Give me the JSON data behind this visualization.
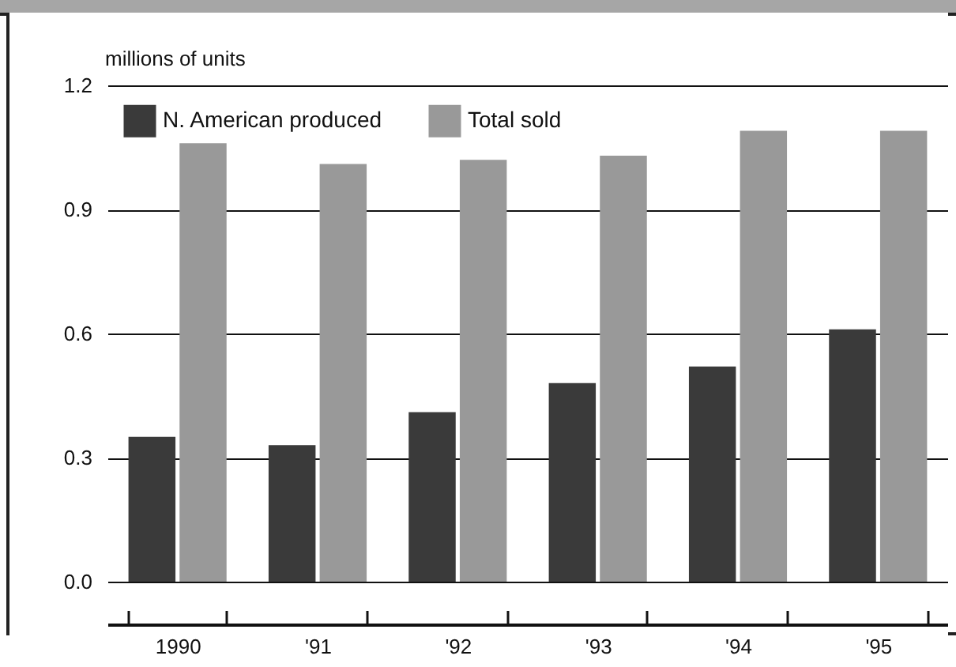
{
  "chart_data": {
    "type": "bar",
    "ylabel": "millions of units",
    "categories": [
      "1990",
      "'91",
      "'92",
      "'93",
      "'94",
      "'95"
    ],
    "series": [
      {
        "name": "N. American produced",
        "color": "#3a3a3a",
        "values": [
          0.35,
          0.33,
          0.41,
          0.48,
          0.52,
          0.61
        ]
      },
      {
        "name": "Total sold",
        "color": "#999999",
        "values": [
          1.06,
          1.01,
          1.02,
          1.03,
          1.09,
          1.09
        ]
      }
    ],
    "ylim": [
      0,
      1.2
    ],
    "yticks": [
      {
        "value": 0,
        "label": "0.0"
      },
      {
        "value": 0.3,
        "label": "0.3"
      },
      {
        "value": 0.6,
        "label": "0.6"
      },
      {
        "value": 0.9,
        "label": "0.9"
      },
      {
        "value": 1.2,
        "label": "1.2"
      }
    ],
    "grid": "y",
    "legend": "top left"
  }
}
